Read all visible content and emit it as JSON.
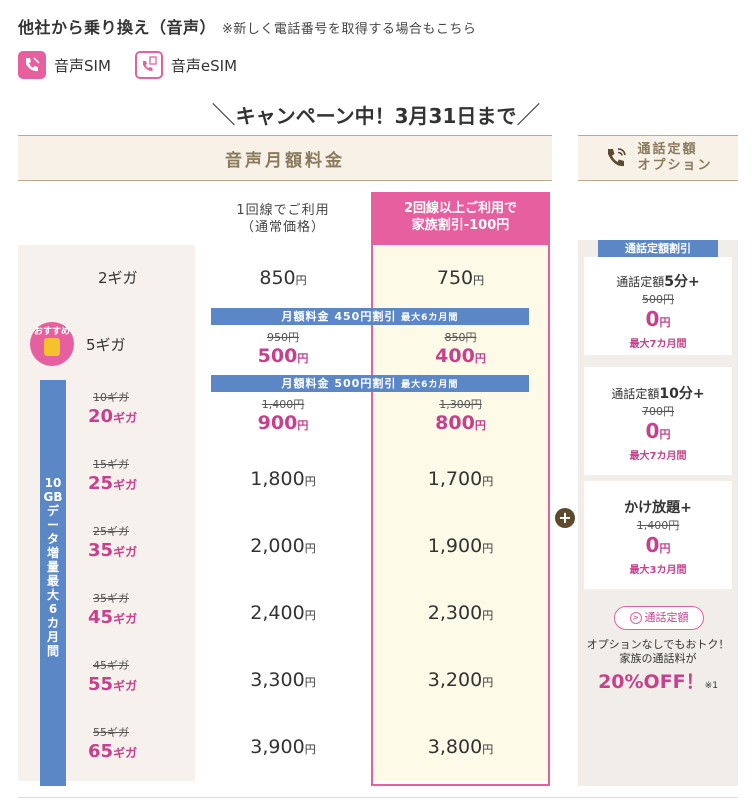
{
  "header": {
    "title": "他社から乗り換え（音声）",
    "note": "※新しく電話番号を取得する場合もこちら"
  },
  "sim_types": [
    {
      "label": "音声SIM",
      "icon": "phone-sim-icon"
    },
    {
      "label": "音声eSIM",
      "icon": "phone-esim-icon"
    }
  ],
  "campaign": {
    "text": "キャンペーン中！3月31日まで"
  },
  "fee_table": {
    "header": "音声月額料金",
    "col1_line1": "1回線でご利用",
    "col1_line2": "（通常価格）",
    "col2_line1": "2回線以上ご利用で",
    "col2_line2": "家族割引-100円",
    "recommend_label": "おすすめ",
    "side_label": [
      "10",
      "GB",
      "デ",
      "ー",
      "タ",
      "増",
      "量",
      " ",
      "最",
      "大",
      "6",
      "カ",
      "月",
      "間"
    ],
    "band1_main": "月額料金 450円割引 ",
    "band1_small": "最大6カ月間",
    "band2_main": "月額料金 500円割引 ",
    "band2_small": "最大6カ月間",
    "rows": [
      {
        "size": "2ギガ",
        "p1": "850",
        "p2": "750",
        "yen": "円"
      },
      {
        "size": "5ギガ",
        "p1_old": "950円",
        "p1": "500",
        "p2_old": "850円",
        "p2": "400",
        "yen": "円"
      },
      {
        "size_old": "10ギガ",
        "size_num": "20",
        "p1_old": "1,400円",
        "p1": "900",
        "p2_old": "1,300円",
        "p2": "800",
        "yen": "円"
      },
      {
        "size_old": "15ギガ",
        "size_num": "25",
        "p1": "1,800",
        "p2": "1,700",
        "yen": "円"
      },
      {
        "size_old": "25ギガ",
        "size_num": "35",
        "p1": "2,000",
        "p2": "1,900",
        "yen": "円"
      },
      {
        "size_old": "35ギガ",
        "size_num": "45",
        "p1": "2,400",
        "p2": "2,300",
        "yen": "円"
      },
      {
        "size_old": "45ギガ",
        "size_num": "55",
        "p1": "3,300",
        "p2": "3,200",
        "yen": "円"
      },
      {
        "size_old": "55ギガ",
        "size_num": "65",
        "p1": "3,900",
        "p2": "3,800",
        "yen": "円"
      }
    ],
    "giga_unit": "ギガ"
  },
  "options": {
    "header_line1": "通話定額",
    "header_line2": "オプション",
    "panel_title": "通話定額割引",
    "plus": "+",
    "cards": [
      {
        "title_pre": "通話定額",
        "title_bold": "5分",
        "title_post": "+",
        "old": "500円",
        "price": "0",
        "period": "最大7カ月間"
      },
      {
        "title_pre": "通話定額",
        "title_bold": "10分",
        "title_post": "+",
        "old": "700円",
        "price": "0",
        "period": "最大7カ月間"
      },
      {
        "title_pre": "",
        "title_bold": "かけ放題",
        "title_post": "+",
        "old": "1,400円",
        "price": "0",
        "period": "最大3カ月間"
      }
    ],
    "yen": "円",
    "button_label": "通話定額",
    "note_line1": "オプションなしでもおトク！",
    "note_line2": "家族の通話料が",
    "off_text": "20%OFF！",
    "off_note": "※1"
  },
  "colors": {
    "accent_pink": "#e6609f",
    "price_pink": "#c7408d",
    "band_blue": "#5b87c7",
    "header_beige": "#f7f1e8"
  }
}
